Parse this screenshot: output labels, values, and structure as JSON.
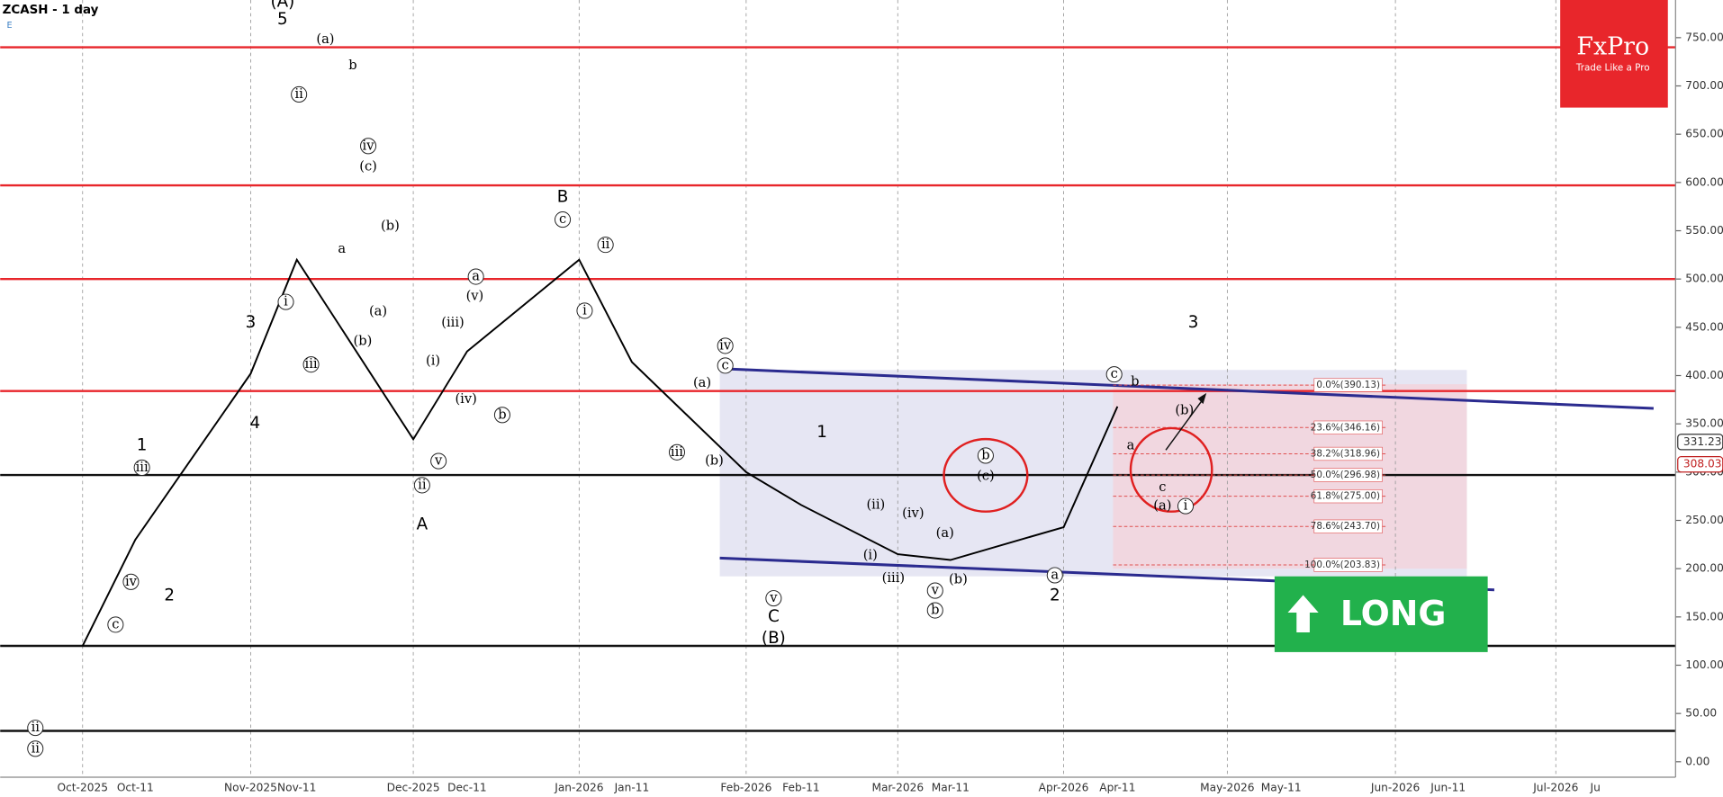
{
  "header": {
    "title": "ZCASH - 1 day",
    "sub": "E"
  },
  "logo": {
    "brand": "FxPro",
    "tagline": "Trade Like a Pro"
  },
  "button": {
    "label": "LONG"
  },
  "chart_data": {
    "type": "line",
    "categories": [
      "Oct-2025",
      "Oct-11",
      "Nov-2025",
      "Nov-11",
      "Dec-2025",
      "Dec-11",
      "Jan-2026",
      "Jan-11",
      "Feb-2026",
      "Feb-11",
      "Mar-2026",
      "Mar-11",
      "Apr-2026",
      "Apr-11",
      "May-2026",
      "May-11",
      "Jun-2026",
      "Jun-11",
      "Jul-2026",
      "Ju"
    ],
    "series": [
      {
        "name": "ZCASH",
        "color": "#000000",
        "values": [
          120,
          230,
          402,
          520,
          334,
          425,
          520,
          414,
          300,
          266,
          215,
          209,
          243,
          368,
          null,
          null,
          null,
          null,
          null,
          null
        ]
      }
    ],
    "ylim": [
      -24,
      789
    ],
    "yticks": [
      {
        "value": 0,
        "label": "0.00"
      },
      {
        "value": 50,
        "label": "50.00"
      },
      {
        "value": 100,
        "label": "100.00"
      },
      {
        "value": 150,
        "label": "150.00"
      },
      {
        "value": 200,
        "label": "200.00"
      },
      {
        "value": 250,
        "label": "250.00"
      },
      {
        "value": 300,
        "label": "300.00"
      },
      {
        "value": 350,
        "label": "350.00"
      },
      {
        "value": 400,
        "label": "400.00"
      },
      {
        "value": 450,
        "label": "450.00"
      },
      {
        "value": 500,
        "label": "500.00"
      },
      {
        "value": 550,
        "label": "550.00"
      },
      {
        "value": 600,
        "label": "600.00"
      },
      {
        "value": 650,
        "label": "650.00"
      },
      {
        "value": 700,
        "label": "700.00"
      },
      {
        "value": 750,
        "label": "750.00"
      }
    ],
    "resistance_levels": [
      740,
      597,
      500,
      384
    ],
    "support_levels": [
      297,
      120,
      32
    ],
    "channel": {
      "upper": [
        407,
        366
      ],
      "lower": [
        211,
        178
      ]
    },
    "price_labels": [
      {
        "value": 331.23,
        "label": "331.23"
      },
      {
        "value": 308.03,
        "label": "308.03"
      }
    ],
    "fib_levels": [
      {
        "value": 390.13,
        "label": "0.0%(390.13)"
      },
      {
        "value": 346.16,
        "label": "23.6%(346.16)"
      },
      {
        "value": 318.96,
        "label": "38.2%(318.96)"
      },
      {
        "value": 296.98,
        "label": "50.0%(296.98)"
      },
      {
        "value": 275.0,
        "label": "61.8%(275.00)"
      },
      {
        "value": 243.7,
        "label": "78.6%(243.70)"
      },
      {
        "value": 203.83,
        "label": "100.0%(203.83)"
      }
    ],
    "wave_labels": [
      "(A)",
      "5",
      "3",
      "4",
      "1",
      "2",
      "A",
      "B",
      "C",
      "(B)",
      "1",
      "2",
      "3",
      "(a)",
      "b",
      "(c)",
      "(b)",
      "(a)",
      "(b)",
      "a",
      "(iii)",
      "(iv)",
      "(i)",
      "(v)",
      "(a)",
      "(b)",
      "(ii)",
      "(iv)",
      "(i)",
      "(iii)",
      "(a)",
      "(b)",
      "(c)",
      "(b)",
      "a",
      "c",
      "(a)",
      "b"
    ],
    "circled_labels": [
      "ii",
      "iv",
      "i",
      "iii",
      "a",
      "b",
      "c",
      "ii",
      "i",
      "iv",
      "c",
      "iii",
      "b",
      "v",
      "b",
      "v",
      "a",
      "c",
      "i",
      "ii",
      "ii",
      "c",
      "iv",
      "iii",
      "v",
      "ii"
    ]
  }
}
